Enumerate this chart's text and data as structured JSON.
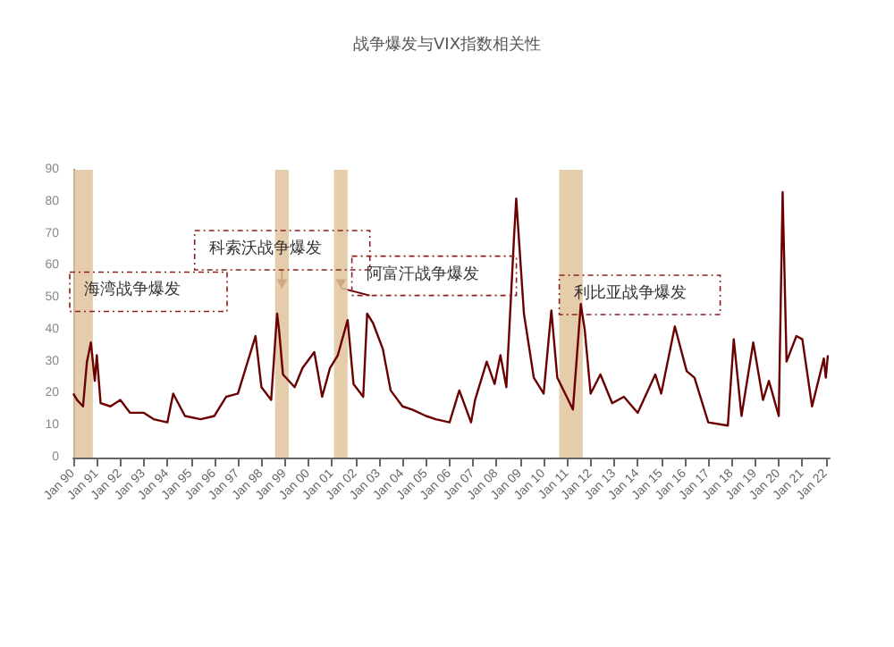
{
  "chart_data": {
    "type": "line",
    "title": "战争爆发与VIX指数相关性",
    "x": [
      "1990-01",
      "1990-03",
      "1990-06",
      "1990-08",
      "1990-10",
      "1990-12",
      "1991-01",
      "1991-03",
      "1991-08",
      "1992-01",
      "1992-06",
      "1993-01",
      "1993-06",
      "1994-01",
      "1994-04",
      "1994-10",
      "1995-06",
      "1996-01",
      "1996-07",
      "1997-01",
      "1997-10",
      "1998-01",
      "1998-06",
      "1998-09",
      "1998-10",
      "1998-12",
      "1999-06",
      "1999-10",
      "2000-04",
      "2000-08",
      "2000-12",
      "2001-04",
      "2001-09",
      "2001-12",
      "2002-05",
      "2002-07",
      "2002-10",
      "2003-03",
      "2003-07",
      "2004-01",
      "2004-06",
      "2005-01",
      "2005-06",
      "2006-01",
      "2006-06",
      "2006-12",
      "2007-02",
      "2007-08",
      "2007-12",
      "2008-03",
      "2008-06",
      "2008-10",
      "2008-11",
      "2009-03",
      "2009-08",
      "2010-01",
      "2010-05",
      "2010-08",
      "2011-04",
      "2011-08",
      "2011-10",
      "2012-01",
      "2012-06",
      "2012-12",
      "2013-06",
      "2014-01",
      "2014-10",
      "2015-01",
      "2015-08",
      "2016-02",
      "2016-06",
      "2017-01",
      "2017-11",
      "2018-02",
      "2018-06",
      "2018-12",
      "2019-05",
      "2019-08",
      "2020-01",
      "2020-03",
      "2020-05",
      "2020-10",
      "2021-01",
      "2021-06",
      "2021-12",
      "2022-01",
      "2022-02"
    ],
    "series": [
      {
        "color": "#6b0000",
        "values": [
          20,
          18,
          16,
          30,
          36,
          24,
          32,
          17,
          16,
          18,
          14,
          14,
          12,
          11,
          20,
          13,
          12,
          13,
          19,
          20,
          38,
          22,
          18,
          45,
          40,
          26,
          22,
          28,
          33,
          19,
          28,
          32,
          43,
          23,
          19,
          45,
          42,
          34,
          21,
          16,
          15,
          13,
          12,
          11,
          21,
          11,
          18,
          30,
          23,
          32,
          22,
          70,
          81,
          45,
          25,
          20,
          46,
          25,
          15,
          48,
          40,
          20,
          26,
          17,
          19,
          14,
          26,
          20,
          41,
          27,
          25,
          11,
          10,
          37,
          13,
          36,
          18,
          24,
          13,
          83,
          30,
          38,
          37,
          16,
          31,
          25,
          32
        ]
      }
    ],
    "xlim": [
      "1990-01",
      "2022-03"
    ],
    "xticks": [
      {
        "value": "1990-01",
        "label": "Jan 90"
      },
      {
        "value": "1991-01",
        "label": "Jan 91"
      },
      {
        "value": "1992-01",
        "label": "Jan 92"
      },
      {
        "value": "1993-01",
        "label": "Jan 93"
      },
      {
        "value": "1994-01",
        "label": "Jan 94"
      },
      {
        "value": "1995-01",
        "label": "Jan 95"
      },
      {
        "value": "1996-01",
        "label": "Jan 96"
      },
      {
        "value": "1997-01",
        "label": "Jan 97"
      },
      {
        "value": "1998-01",
        "label": "Jan 98"
      },
      {
        "value": "1999-01",
        "label": "Jan 99"
      },
      {
        "value": "2000-01",
        "label": "Jan 00"
      },
      {
        "value": "2001-01",
        "label": "Jan 01"
      },
      {
        "value": "2002-01",
        "label": "Jan 02"
      },
      {
        "value": "2003-01",
        "label": "Jan 03"
      },
      {
        "value": "2004-01",
        "label": "Jan 04"
      },
      {
        "value": "2005-01",
        "label": "Jan 05"
      },
      {
        "value": "2006-01",
        "label": "Jan 06"
      },
      {
        "value": "2007-01",
        "label": "Jan 07"
      },
      {
        "value": "2008-01",
        "label": "Jan 08"
      },
      {
        "value": "2009-01",
        "label": "Jan 09"
      },
      {
        "value": "2010-01",
        "label": "Jan 10"
      },
      {
        "value": "2011-01",
        "label": "Jan 11"
      },
      {
        "value": "2012-01",
        "label": "Jan 12"
      },
      {
        "value": "2013-01",
        "label": "Jan 13"
      },
      {
        "value": "2014-01",
        "label": "Jan 14"
      },
      {
        "value": "2015-01",
        "label": "Jan 15"
      },
      {
        "value": "2016-01",
        "label": "Jan 16"
      },
      {
        "value": "2017-01",
        "label": "Jan 17"
      },
      {
        "value": "2018-01",
        "label": "Jan 18"
      },
      {
        "value": "2019-01",
        "label": "Jan 19"
      },
      {
        "value": "2020-01",
        "label": "Jan 20"
      },
      {
        "value": "2021-01",
        "label": "Jan 21"
      },
      {
        "value": "2022-01",
        "label": "Jan 22"
      }
    ],
    "ylim": [
      0,
      90
    ],
    "yticks": [
      0,
      10,
      20,
      30,
      40,
      50,
      60,
      70,
      80,
      90
    ],
    "bands": [
      {
        "axis": "x",
        "from": "1990-01",
        "to": "1990-11",
        "label": "海湾战争爆发",
        "color": "#e0c49c"
      },
      {
        "axis": "x",
        "from": "1998-08",
        "to": "1999-03",
        "label": "科索沃战争爆发",
        "color": "#e0c49c"
      },
      {
        "axis": "x",
        "from": "2001-02",
        "to": "2001-09",
        "label": "阿富汗战争爆发",
        "color": "#e0c49c"
      },
      {
        "axis": "x",
        "from": "2010-09",
        "to": "2011-09",
        "label": "利比亚战争爆发",
        "color": "#e0c49c"
      }
    ],
    "grid": false,
    "marker": "none",
    "line_style": "solid"
  }
}
